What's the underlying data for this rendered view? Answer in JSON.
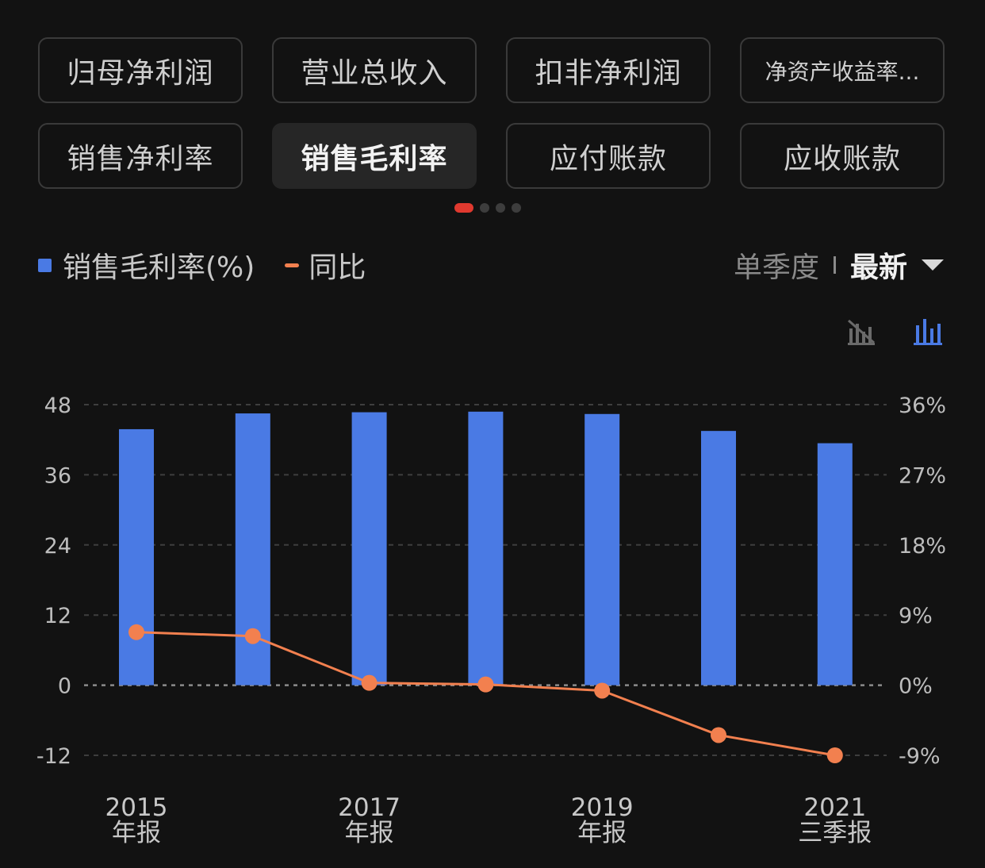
{
  "tabs": [
    {
      "label": "归母净利润"
    },
    {
      "label": "营业总收入"
    },
    {
      "label": "扣非净利润"
    },
    {
      "label": "净资产收益率..."
    },
    {
      "label": "销售净利率"
    },
    {
      "label": "销售毛利率",
      "active": true
    },
    {
      "label": "应付账款"
    },
    {
      "label": "应收账款"
    }
  ],
  "pager": {
    "pages": 4,
    "current": 0
  },
  "legend": {
    "bar_label": "销售毛利率(%)",
    "line_label": "同比"
  },
  "period": {
    "type_label": "单季度",
    "selected_label": "最新"
  },
  "toolbar": {
    "hide_line_icon": "hide-line-icon",
    "bar_chart_icon": "bar-chart-icon"
  },
  "colors": {
    "bar": "#4a7ae4",
    "line": "#f2804f",
    "active_page_dot": "#e0392f"
  },
  "chart_data": {
    "type": "bar",
    "categories": [
      "2015年报",
      "2016年报",
      "2017年报",
      "2018年报",
      "2019年报",
      "2020年报",
      "2021三季报"
    ],
    "x_tick_labels": [
      {
        "index": 0,
        "line1": "2015",
        "line2": "年报"
      },
      {
        "index": 2,
        "line1": "2017",
        "line2": "年报"
      },
      {
        "index": 4,
        "line1": "2019",
        "line2": "年报"
      },
      {
        "index": 6,
        "line1": "2021",
        "line2": "三季报"
      }
    ],
    "series": [
      {
        "name": "销售毛利率(%)",
        "type": "bar",
        "axis": "left",
        "values": [
          43.8,
          46.5,
          46.7,
          46.8,
          46.4,
          43.5,
          41.4
        ]
      },
      {
        "name": "同比",
        "type": "line",
        "axis": "right",
        "values": [
          6.8,
          6.3,
          0.3,
          0.1,
          -0.7,
          -6.4,
          -9.0
        ]
      }
    ],
    "y_left": {
      "ticks": [
        "48",
        "36",
        "24",
        "12",
        "0",
        "-12"
      ],
      "min": -12,
      "max": 48
    },
    "y_right": {
      "ticks": [
        "36%",
        "27%",
        "18%",
        "9%",
        "0%",
        "-9%"
      ],
      "min": -9,
      "max": 36
    },
    "grid": true
  }
}
